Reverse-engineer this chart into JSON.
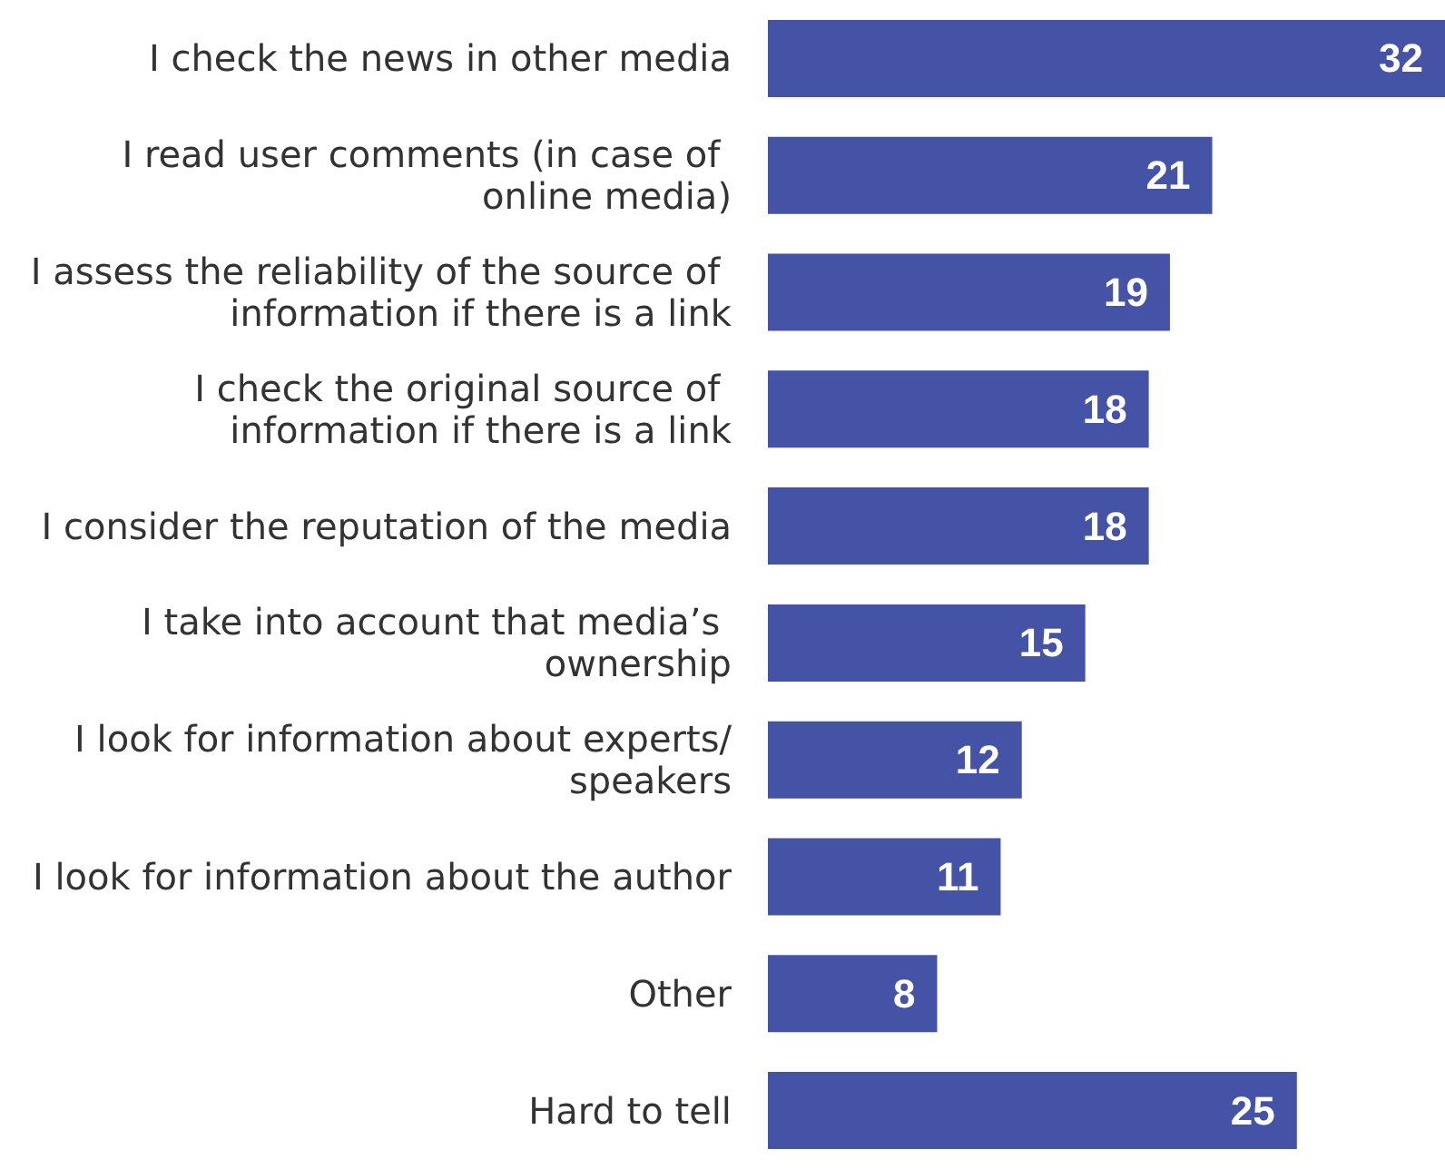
{
  "chart_data": {
    "type": "bar",
    "orientation": "horizontal",
    "categories": [
      "I check the news in other media",
      "I read user comments (in case of online media)",
      "I assess the reliability of the source of information if there is a link",
      "I check the original source of information if there is a link",
      "I consider the reputation of the media",
      "I take into account that media’s ownership",
      "I look for information about experts/speakers",
      "I look for information about the author",
      "Other",
      "Hard to tell"
    ],
    "values": [
      32,
      21,
      19,
      18,
      18,
      15,
      12,
      11,
      8,
      25
    ],
    "color": "#4453a6",
    "data_labels": true
  }
}
